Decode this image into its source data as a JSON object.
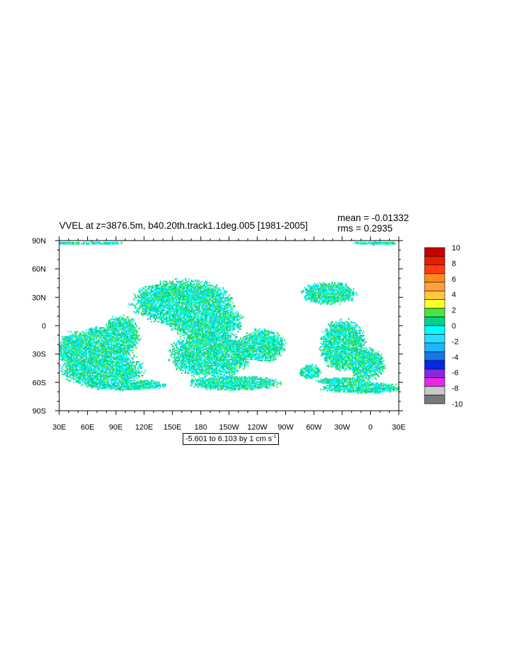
{
  "chart_data": {
    "type": "heatmap",
    "title": "VVEL at z=3876.5m, b40.20th.track1.1deg.005 [1981-2005]",
    "stats": {
      "mean": "mean = -0.01332",
      "rms": "rms = 0.2935"
    },
    "range_label": {
      "text": "-5.601 to 6.103 by 1 cm s",
      "superscript": "-1"
    },
    "x_ticks": [
      "30E",
      "60E",
      "90E",
      "120E",
      "150E",
      "180",
      "150W",
      "120W",
      "90W",
      "60W",
      "30W",
      "0",
      "30E"
    ],
    "y_ticks": [
      "90N",
      "60N",
      "30N",
      "0",
      "30S",
      "60S",
      "90S"
    ],
    "xlim": [
      30,
      390
    ],
    "ylim": [
      -90,
      90
    ],
    "colorbar": {
      "labels": [
        "10",
        "8",
        "6",
        "4",
        "2",
        "0",
        "-2",
        "-4",
        "-6",
        "-8",
        "-10"
      ],
      "colors": [
        "#c80000",
        "#e61e00",
        "#ff3c14",
        "#ff8c1e",
        "#ffa03c",
        "#ffc83c",
        "#ffff28",
        "#46e646",
        "#00d28c",
        "#00ffff",
        "#28dcff",
        "#1eb4ff",
        "#1478e6",
        "#0028e6",
        "#8c28dc",
        "#e628e6",
        "#c8c8c8",
        "#787878"
      ]
    },
    "field": {
      "description_values": "near-zero velocities over ocean, plotted in the 0 to -2 / 0 to 2 classes",
      "land_color": "#ffffff",
      "dominant_colors": [
        "#00d28c",
        "#46e646",
        "#28dcff",
        "#00ffff"
      ]
    }
  }
}
